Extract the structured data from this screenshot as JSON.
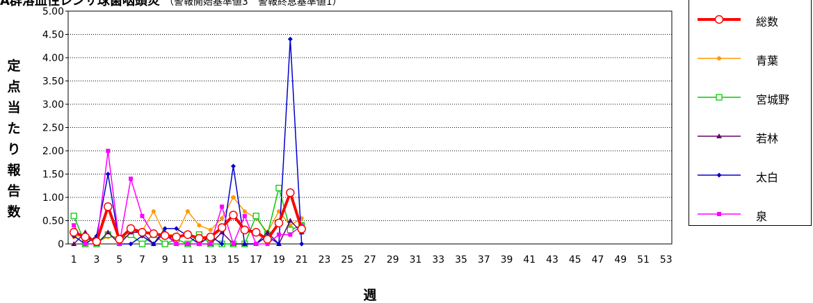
{
  "title": {
    "main": "A群溶血性レンサ球菌咽頭炎",
    "sub": "（警報開始基準値3　警報終息基準値1）"
  },
  "chart_data": {
    "type": "line",
    "xlabel": "週",
    "ylabel": "定点当たり報告数",
    "ylim": [
      0,
      5
    ],
    "y_ticks": [
      "0",
      "0.50",
      "1.00",
      "1.50",
      "2.00",
      "2.50",
      "3.00",
      "3.50",
      "4.00",
      "4.50",
      "5.00"
    ],
    "x_range": [
      1,
      53
    ],
    "x_tick_labels": [
      "1",
      "3",
      "5",
      "7",
      "9",
      "11",
      "13",
      "15",
      "17",
      "19",
      "21",
      "23",
      "25",
      "27",
      "29",
      "31",
      "33",
      "35",
      "37",
      "39",
      "41",
      "43",
      "45",
      "47",
      "49",
      "51",
      "53"
    ],
    "grid": "horizontal dotted",
    "legend_position": "right",
    "series": [
      {
        "name": "総数",
        "color": "#ff0000",
        "marker": "circle-open",
        "values": [
          0.25,
          0.15,
          0.05,
          0.8,
          0.1,
          0.33,
          0.25,
          0.22,
          0.18,
          0.15,
          0.2,
          0.12,
          0.15,
          0.35,
          0.62,
          0.3,
          0.25,
          0.1,
          0.45,
          1.1,
          0.32
        ]
      },
      {
        "name": "青葉",
        "color": "#ff9900",
        "marker": "circle",
        "values": [
          0.15,
          0.2,
          0.05,
          0.15,
          0.15,
          0.3,
          0.28,
          0.7,
          0.2,
          0.2,
          0.7,
          0.4,
          0.3,
          0.55,
          1.0,
          0.7,
          0.55,
          0.25,
          0.7,
          0.4,
          0.55
        ]
      },
      {
        "name": "宮城野",
        "color": "#00cc00",
        "marker": "square-open",
        "values": [
          0.6,
          0.0,
          0.0,
          0.2,
          0.1,
          0.2,
          0.0,
          0.2,
          0.0,
          0.1,
          0.0,
          0.2,
          0.0,
          0.0,
          0.0,
          0.0,
          0.6,
          0.2,
          1.2,
          0.3,
          0.4
        ]
      },
      {
        "name": "若林",
        "color": "#660066",
        "marker": "triangle",
        "values": [
          0.0,
          0.25,
          0.0,
          0.25,
          0.0,
          0.25,
          0.25,
          0.0,
          0.25,
          0.0,
          0.0,
          0.0,
          0.0,
          0.25,
          0.0,
          0.0,
          0.0,
          0.25,
          0.0,
          0.5,
          0.25
        ]
      },
      {
        "name": "太白",
        "color": "#0000cc",
        "marker": "diamond",
        "values": [
          0.17,
          0.0,
          0.17,
          1.5,
          0.0,
          0.0,
          0.17,
          0.0,
          0.33,
          0.33,
          0.17,
          0.0,
          0.17,
          0.0,
          1.67,
          0.0,
          0.0,
          0.17,
          0.0,
          4.4,
          0.0
        ]
      },
      {
        "name": "泉",
        "color": "#ff00ff",
        "marker": "square",
        "values": [
          0.4,
          0.0,
          0.0,
          2.0,
          0.0,
          1.4,
          0.6,
          0.2,
          0.2,
          0.0,
          0.0,
          0.0,
          0.0,
          0.8,
          0.0,
          0.6,
          0.0,
          0.0,
          0.2,
          0.2,
          0.4
        ]
      }
    ]
  }
}
